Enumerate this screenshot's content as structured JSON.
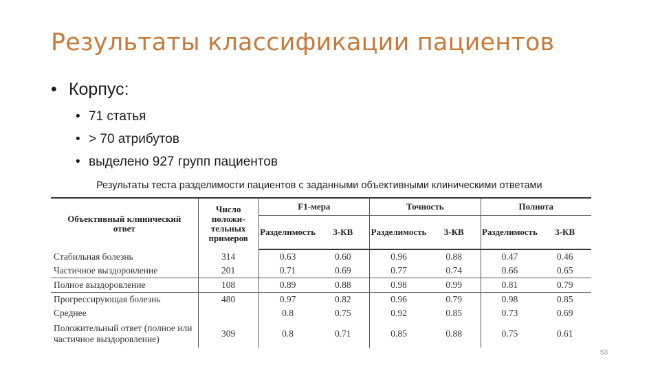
{
  "slide": {
    "title": "Результаты классификации пациентов",
    "bullet1": "Корпус:",
    "sub_bullets": [
      "71 статья",
      "> 70 атрибутов",
      "выделено 927 групп пациентов"
    ],
    "bullet_char": "•",
    "page_number": "53",
    "title_color": "#c77a3a"
  },
  "table": {
    "caption": "Результаты теста разделимости пациентов с заданными объективными клиническими ответами",
    "headers": {
      "objective_response": "Объективный клинический ответ",
      "positive_count": "Число положи-тельных примеров",
      "f1": "F1-мера",
      "precision": "Точность",
      "recall": "Полнота",
      "separability": "Разделимость",
      "kv3": "3-КВ"
    },
    "rows": [
      {
        "name": "Стабильная болезнь",
        "count": "314",
        "f1_sep": "0.63",
        "f1_kv": "0.60",
        "p_sep": "0.96",
        "p_kv": "0.88",
        "r_sep": "0.47",
        "r_kv": "0.46"
      },
      {
        "name": "Частичное выздоровление",
        "count": "201",
        "f1_sep": "0.71",
        "f1_kv": "0.69",
        "p_sep": "0.77",
        "p_kv": "0.74",
        "r_sep": "0.66",
        "r_kv": "0.65"
      },
      {
        "name": "Полное выздоровление",
        "count": "108",
        "f1_sep": "0.89",
        "f1_kv": "0.88",
        "p_sep": "0.98",
        "p_kv": "0.99",
        "r_sep": "0.81",
        "r_kv": "0.79"
      },
      {
        "name": "Прогрессирующая болезнь",
        "count": "480",
        "f1_sep": "0.97",
        "f1_kv": "0.82",
        "p_sep": "0.96",
        "p_kv": "0.79",
        "r_sep": "0.98",
        "r_kv": "0.85"
      },
      {
        "name": "Среднее",
        "count": "",
        "f1_sep": "0.8",
        "f1_kv": "0.75",
        "p_sep": "0.92",
        "p_kv": "0.85",
        "r_sep": "0.73",
        "r_kv": "0.69"
      },
      {
        "name": "Положительный ответ (полное или частичное выздоровление)",
        "count": "309",
        "f1_sep": "0.8",
        "f1_kv": "0.71",
        "p_sep": "0.85",
        "p_kv": "0.88",
        "r_sep": "0.75",
        "r_kv": "0.61"
      }
    ]
  }
}
